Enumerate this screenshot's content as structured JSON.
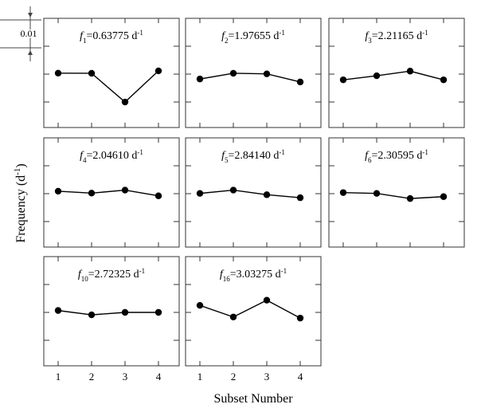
{
  "figure": {
    "ylabel_main": "Frequency (d",
    "ylabel_sup": "-1",
    "ylabel_close": ")",
    "xlabel": "Subset Number",
    "scale_label": "0.01"
  },
  "chart_data": [
    {
      "type": "line",
      "label_sym": "f",
      "label_sub": "1",
      "label_value": "=0.63775 d",
      "label_sup": "-1",
      "x": [
        1,
        2,
        3,
        4
      ],
      "values": [
        0.00035,
        0.0003,
        -0.0103,
        0.0012
      ]
    },
    {
      "type": "line",
      "label_sym": "f",
      "label_sub": "2",
      "label_value": "=1.97655 d",
      "label_sup": "-1",
      "x": [
        1,
        2,
        3,
        4
      ],
      "values": [
        -0.0018,
        0.0003,
        0.0001,
        -0.0029
      ]
    },
    {
      "type": "line",
      "label_sym": "f",
      "label_sub": "3",
      "label_value": "=2.21165 d",
      "label_sup": "-1",
      "x": [
        1,
        2,
        3,
        4
      ],
      "values": [
        -0.0021,
        -0.0006,
        0.0011,
        -0.0021
      ]
    },
    {
      "type": "line",
      "label_sym": "f",
      "label_sub": "4",
      "label_value": "=2.04610 d",
      "label_sup": "-1",
      "x": [
        1,
        2,
        3,
        4
      ],
      "values": [
        0.0009,
        0.0002,
        0.0013,
        -0.0008
      ]
    },
    {
      "type": "line",
      "label_sym": "f",
      "label_sub": "5",
      "label_value": "=2.84140 d",
      "label_sup": "-1",
      "x": [
        1,
        2,
        3,
        4
      ],
      "values": [
        0.0001,
        0.0013,
        -0.0004,
        -0.0015
      ]
    },
    {
      "type": "line",
      "label_sym": "f",
      "label_sub": "6",
      "label_value": "=2.30595 d",
      "label_sup": "-1",
      "x": [
        1,
        2,
        3,
        4
      ],
      "values": [
        0.0004,
        0.0001,
        -0.0018,
        -0.0011
      ]
    },
    {
      "type": "line",
      "label_sym": "f",
      "label_sub": "10",
      "label_value": "=2.72325 d",
      "label_sup": "-1",
      "x": [
        1,
        2,
        3,
        4
      ],
      "values": [
        0.0007,
        -0.0009,
        0.0,
        0.0
      ]
    },
    {
      "type": "line",
      "label_sym": "f",
      "label_sub": "16",
      "label_value": "=3.03275 d",
      "label_sup": "-1",
      "x": [
        1,
        2,
        3,
        4
      ],
      "values": [
        0.0026,
        -0.0017,
        0.0045,
        -0.0021
      ]
    }
  ],
  "x_ticks": [
    "1",
    "2",
    "3",
    "4"
  ],
  "colors": {
    "line": "#000000",
    "marker": "#000000",
    "frame": "#333333"
  }
}
